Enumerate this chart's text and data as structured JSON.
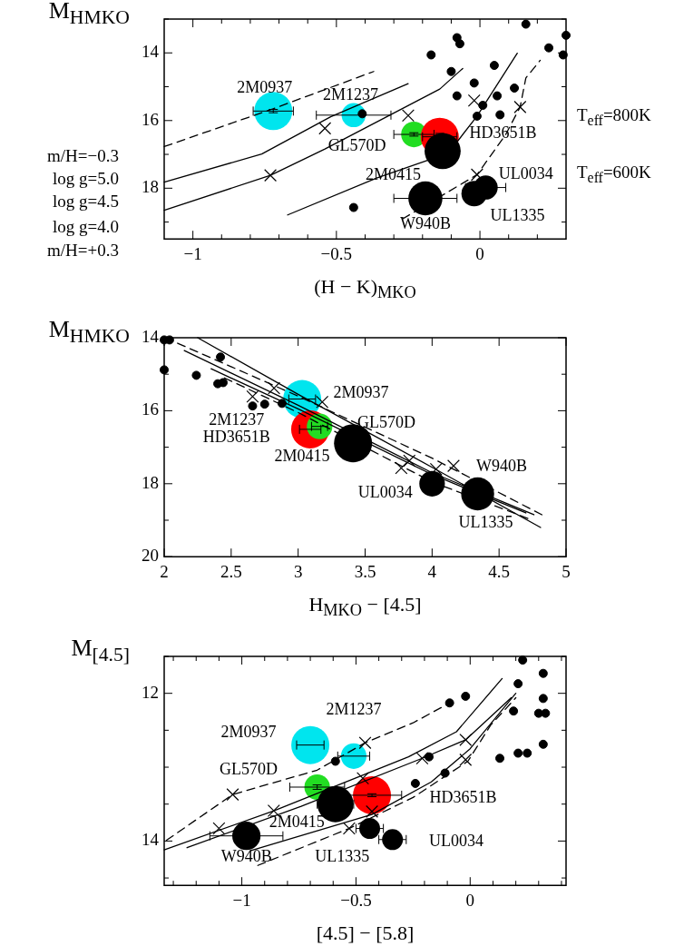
{
  "chart_data": [
    {
      "type": "scatter",
      "xlabel": "(H − K)$_{MKO}$",
      "ylabel": "M$_{H}$$_{MKO}$",
      "xlim": [
        -1.1,
        0.3
      ],
      "ylim": [
        19.5,
        13
      ],
      "xticks": [
        {
          "value": -1,
          "label": "−1"
        },
        {
          "value": -0.9,
          "label": null
        },
        {
          "value": -0.8,
          "label": null
        },
        {
          "value": -0.7,
          "label": null
        },
        {
          "value": -0.6,
          "label": null
        },
        {
          "value": -0.5,
          "label": "−0.5"
        },
        {
          "value": -0.4,
          "label": null
        },
        {
          "value": -0.3,
          "label": null
        },
        {
          "value": -0.2,
          "label": null
        },
        {
          "value": -0.1,
          "label": null
        },
        0,
        {
          "value": 0.1,
          "label": null
        },
        {
          "value": 0.2,
          "label": null
        }
      ],
      "yticks": [
        {
          "value": 13,
          "label": null
        },
        14,
        {
          "value": 15,
          "label": null
        },
        16,
        {
          "value": 17,
          "label": null
        },
        18,
        {
          "value": 19,
          "label": null
        }
      ],
      "annotations": [
        "2M0937",
        "2M1237",
        "GL570D",
        "HD3651B",
        "2M0415",
        "UL0034",
        "UL1335",
        "W940B",
        "m/H=−0.3",
        "log g=5.0",
        "log g=4.5",
        "log g=4.0",
        "m/H=+0.3",
        "T$_{eff}$=800K",
        "T$_{eff}$=600K"
      ],
      "series": [
        {
          "type": "bubble",
          "marker": "circle",
          "colors": [
            "#00e5ee",
            "#00e5ee",
            "#22dd22",
            "#ff0000",
            "#000000",
            "#000000",
            "#000000",
            "#000000"
          ],
          "x": [
            -0.72,
            -0.44,
            -0.23,
            -0.14,
            -0.13,
            -0.19,
            0.02,
            -0.02
          ],
          "values": [
            15.72,
            15.84,
            16.41,
            16.48,
            16.9,
            18.3,
            17.98,
            18.16
          ],
          "sizes": [
            1,
            0.4,
            0.45,
            1,
            0.9,
            0.8,
            0.4,
            0.45
          ],
          "xerrors": [
            0.07,
            0.13,
            0.07,
            0.06,
            null,
            0.11,
            0.07,
            0.03
          ],
          "errors": [
            0.05,
            null,
            0.05,
            0.1,
            null,
            null,
            null,
            null
          ]
        },
        {
          "marker": "cross",
          "color": "#000000",
          "x": [
            -0.73,
            -0.54,
            -0.25,
            -0.02,
            -0.01,
            0.14
          ],
          "values": [
            17.62,
            16.23,
            15.85,
            15.41,
            17.6,
            15.6
          ]
        },
        {
          "marker": "circle",
          "color": "#000000",
          "x": [
            -0.08,
            -0.07,
            -0.17,
            -0.1,
            0.16,
            0.24,
            0.29,
            0.3,
            0.05,
            -0.02,
            -0.08,
            0.12,
            0.06,
            0.01,
            -0.01,
            0.07,
            -0.41,
            -0.44
          ],
          "values": [
            13.55,
            13.73,
            14.06,
            14.55,
            13.15,
            13.85,
            14.06,
            13.48,
            14.37,
            14.89,
            15.27,
            15.04,
            15.27,
            15.55,
            15.87,
            15.83,
            15.8,
            18.57
          ]
        },
        {
          "type": "line",
          "line_style": "dashed",
          "marker": "none",
          "color": "#000000",
          "x": [
            -1.1,
            -0.72,
            -0.37
          ],
          "values": [
            16.77,
            15.65,
            14.55
          ]
        },
        {
          "type": "line",
          "line_style": "solid",
          "marker": "none",
          "color": "#000000",
          "x": [
            -1.1,
            -0.76,
            -0.52,
            -0.25
          ],
          "values": [
            17.82,
            16.99,
            15.89,
            14.91
          ]
        },
        {
          "type": "line",
          "line_style": "solid",
          "marker": "none",
          "color": "#000000",
          "x": [
            -1.1,
            -0.73,
            -0.54,
            -0.14,
            -0.06
          ],
          "values": [
            18.65,
            17.62,
            16.84,
            15.07,
            14.46
          ]
        },
        {
          "type": "line",
          "line_style": "solid",
          "marker": "none",
          "color": "#000000",
          "x": [
            -0.67,
            -0.36,
            -0.11,
            -0.01,
            0.13
          ],
          "values": [
            18.79,
            17.7,
            16.96,
            15.87,
            14.01
          ]
        },
        {
          "type": "line",
          "line_style": "dashed",
          "marker": "none",
          "color": "#000000",
          "x": [
            -0.27,
            -0.01,
            0.09,
            0.14,
            0.16,
            0.21
          ],
          "values": [
            18.91,
            17.6,
            16.41,
            15.6,
            14.74,
            14.22
          ]
        }
      ]
    },
    {
      "type": "scatter",
      "xlabel": "H$_{MKO}$ − [4.5]",
      "ylabel": "M$_{H}$$_{MKO}$",
      "xlim": [
        2,
        5
      ],
      "ylim": [
        20,
        14
      ],
      "xticks": [
        2,
        2.5,
        3,
        3.5,
        4,
        4.5,
        5
      ],
      "yticks": [
        14,
        {
          "value": 15,
          "label": null
        },
        16,
        {
          "value": 17,
          "label": null
        },
        18,
        {
          "value": 19,
          "label": null
        },
        20
      ],
      "annotations": [
        "2M0937",
        "2M1237",
        "HD3651B",
        "GL570D",
        "2M0415",
        "W940B",
        "UL0034",
        "UL1335"
      ],
      "series": [
        {
          "type": "bubble",
          "marker": "circle",
          "colors": [
            "#00e5ee",
            "#00e5ee",
            "#ff0000",
            "#22dd22",
            "#000000",
            "#000000",
            "#000000"
          ],
          "x": [
            3.03,
            3.06,
            3.09,
            3.16,
            3.41,
            4.0,
            4.34
          ],
          "values": [
            15.68,
            null,
            16.51,
            16.43,
            16.89,
            18.0,
            18.28
          ],
          "sizes": [
            1,
            null,
            1,
            0.45,
            1,
            0.45,
            0.75
          ],
          "xerrors": [
            0.1,
            null,
            0.08,
            0.06,
            null,
            null,
            null
          ]
        },
        {
          "marker": "cross",
          "color": "#000000",
          "x": [
            2.66,
            2.82,
            3.18,
            3.77,
            3.83,
            4.03,
            4.16
          ],
          "values": [
            15.61,
            15.38,
            15.76,
            17.57,
            17.37,
            17.6,
            17.51
          ]
        },
        {
          "marker": "circle",
          "color": "#000000",
          "x": [
            2.0,
            2.04,
            2.0,
            2.24,
            2.4,
            2.44,
            2.42,
            2.66,
            2.75,
            2.88
          ],
          "values": [
            14.06,
            14.06,
            14.88,
            15.03,
            15.26,
            15.23,
            14.53,
            15.87,
            15.82,
            15.8
          ]
        },
        {
          "type": "line",
          "line_style": "dashed",
          "marker": "none",
          "color": "#000000",
          "x": [
            2.1,
            3.0,
            4.0,
            4.82
          ],
          "values": [
            14.15,
            15.6,
            17.3,
            18.85
          ]
        },
        {
          "type": "line",
          "line_style": "solid",
          "marker": "none",
          "color": "#000000",
          "x": [
            2.25,
            3.0,
            4.0,
            4.81
          ],
          "values": [
            14.0,
            15.55,
            17.55,
            19.2
          ]
        },
        {
          "type": "line",
          "line_style": "solid",
          "marker": "none",
          "color": "#000000",
          "x": [
            2.15,
            3.0,
            4.0,
            4.76
          ],
          "values": [
            14.35,
            15.85,
            17.7,
            18.85
          ]
        },
        {
          "type": "line",
          "line_style": "solid",
          "marker": "none",
          "color": "#000000",
          "x": [
            2.35,
            3.0,
            4.0,
            4.7
          ],
          "values": [
            14.85,
            15.95,
            17.75,
            18.8
          ]
        },
        {
          "type": "line",
          "line_style": "dashed",
          "marker": "none",
          "color": "#000000",
          "x": [
            2.45,
            3.0,
            4.0,
            4.75
          ],
          "values": [
            15.1,
            16.05,
            17.95,
            19.0
          ]
        }
      ]
    },
    {
      "type": "scatter",
      "xlabel": "[4.5] − [5.8]",
      "ylabel": "M$_{[4.5]}$",
      "xlim": [
        -1.34,
        0.42
      ],
      "ylim": [
        14.6,
        11.5
      ],
      "xticks": [
        {
          "value": -1.3,
          "label": null
        },
        {
          "value": -1.2,
          "label": null
        },
        {
          "value": -1.1,
          "label": null
        },
        {
          "value": -1,
          "label": "−1"
        },
        {
          "value": -0.9,
          "label": null
        },
        {
          "value": -0.8,
          "label": null
        },
        {
          "value": -0.7,
          "label": null
        },
        {
          "value": -0.6,
          "label": null
        },
        {
          "value": -0.5,
          "label": "−0.5"
        },
        {
          "value": -0.4,
          "label": null
        },
        {
          "value": -0.3,
          "label": null
        },
        {
          "value": -0.2,
          "label": null
        },
        {
          "value": -0.1,
          "label": null
        },
        0,
        {
          "value": 0.1,
          "label": null
        },
        {
          "value": 0.2,
          "label": null
        },
        {
          "value": 0.3,
          "label": null
        },
        {
          "value": 0.4,
          "label": null
        }
      ],
      "yticks": [
        {
          "value": 11.5,
          "label": null
        },
        12,
        {
          "value": 12.5,
          "label": null
        },
        {
          "value": 13,
          "label": null
        },
        {
          "value": 13.5,
          "label": null
        },
        14,
        {
          "value": 14.5,
          "label": null
        }
      ],
      "annotations": [
        "2M1237",
        "2M0937",
        "GL570D",
        "HD3651B",
        "2M0415",
        "W940B",
        "UL1335",
        "UL0034"
      ],
      "series": [
        {
          "type": "bubble",
          "marker": "circle",
          "colors": [
            "#00e5ee",
            "#00e5ee",
            "#22dd22",
            "#ff0000",
            "#000000",
            "#000000",
            "#000000",
            "#000000"
          ],
          "x": [
            -0.7,
            -0.51,
            -0.67,
            -0.43,
            -0.59,
            -0.98,
            -0.44,
            -0.34
          ],
          "values": [
            12.7,
            12.85,
            13.27,
            13.38,
            13.5,
            13.93,
            13.83,
            13.98
          ],
          "sizes": [
            1,
            0.45,
            0.45,
            1,
            0.9,
            0.55,
            0.3,
            0.3
          ],
          "xerrors": [
            0.06,
            0.07,
            0.12,
            0.13,
            0.08,
            0.16,
            0.06,
            0.06
          ],
          "errors": [
            null,
            null,
            0.03,
            0.02,
            null,
            null,
            null,
            null
          ]
        },
        {
          "marker": "cross",
          "color": "#000000",
          "x": [
            -0.46,
            -0.21,
            -0.02,
            -0.02,
            -0.47,
            -1.04,
            -0.86,
            -1.1,
            -0.53,
            -0.43
          ],
          "values": [
            12.67,
            12.88,
            12.63,
            12.9,
            13.15,
            13.37,
            13.59,
            13.83,
            13.83,
            13.6
          ]
        },
        {
          "marker": "circle",
          "color": "#000000",
          "x": [
            0.23,
            -0.09,
            -0.02,
            0.21,
            0.32,
            0.32,
            0.19,
            0.3,
            0.33,
            0.32,
            0.21,
            0.25,
            0.13,
            -0.18,
            -0.11,
            -0.24,
            -0.59
          ],
          "values": [
            11.55,
            12.13,
            12.04,
            11.87,
            11.73,
            12.07,
            12.24,
            12.27,
            12.27,
            12.69,
            12.81,
            12.81,
            12.88,
            12.86,
            13.08,
            13.22,
            12.92
          ]
        },
        {
          "type": "line",
          "line_style": "dashed",
          "marker": "none",
          "color": "#000000",
          "x": [
            -1.33,
            -1.04,
            -0.67,
            -0.46,
            -0.25,
            -0.09
          ],
          "values": [
            13.99,
            13.37,
            13.04,
            12.67,
            12.4,
            12.13
          ]
        },
        {
          "type": "line",
          "line_style": "solid",
          "marker": "none",
          "color": "#000000",
          "x": [
            -1.34,
            -0.86,
            -0.27,
            -0.06,
            0.14
          ],
          "values": [
            14.12,
            13.59,
            12.86,
            12.52,
            11.8
          ]
        },
        {
          "type": "line",
          "line_style": "solid",
          "marker": "none",
          "color": "#000000",
          "x": [
            -1.24,
            -0.74,
            -0.21,
            -0.02,
            0.18
          ],
          "values": [
            14.09,
            13.53,
            12.88,
            12.63,
            12.06
          ]
        },
        {
          "type": "line",
          "line_style": "solid",
          "marker": "none",
          "color": "#000000",
          "x": [
            -0.96,
            -0.43,
            -0.17,
            0.0,
            0.2
          ],
          "values": [
            14.13,
            13.64,
            13.2,
            12.75,
            12.0
          ]
        },
        {
          "type": "line",
          "line_style": "dashed",
          "marker": "none",
          "color": "#000000",
          "x": [
            -0.93,
            -0.53,
            -0.25,
            -0.01,
            0.09,
            0.2
          ],
          "values": [
            14.33,
            13.83,
            13.41,
            12.92,
            12.43,
            12.06
          ]
        }
      ]
    }
  ]
}
